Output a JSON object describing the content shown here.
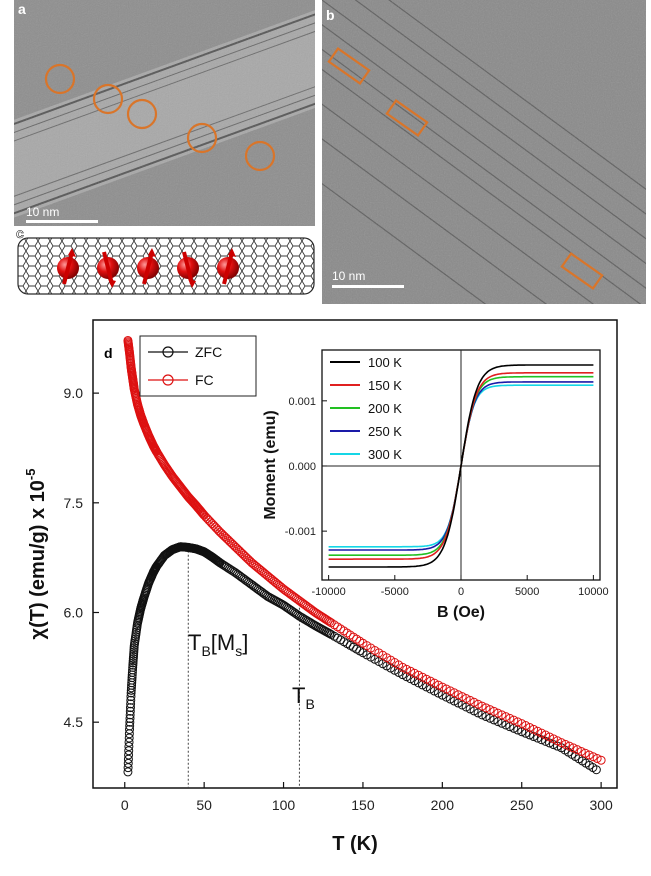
{
  "panels": {
    "a": {
      "label": "a",
      "scale_bar": "10 nm"
    },
    "b": {
      "label": "b",
      "scale_bar": "10 nm"
    },
    "c": {
      "label": "c"
    },
    "d": {
      "label": "d"
    }
  },
  "chart_data": [
    {
      "type": "scatter",
      "panel": "d",
      "xlabel": "T (K)",
      "ylabel": "χ(T) (emu/g) x 10",
      "ylabel_exp": "-5",
      "xlim": [
        -20,
        310
      ],
      "ylim": [
        3.6,
        10.0
      ],
      "x_ticks": [
        0,
        50,
        100,
        150,
        200,
        250,
        300
      ],
      "y_ticks": [
        4.5,
        6.0,
        7.5,
        9.0
      ],
      "x_tick_labels": [
        "0",
        "50",
        "100",
        "150",
        "200",
        "250",
        "300"
      ],
      "y_tick_labels": [
        "4.5",
        "6.0",
        "7.5",
        "9.0"
      ],
      "legend_position": "top-left",
      "series": [
        {
          "name": "ZFC",
          "color": "#111111",
          "marker": "open-circle",
          "x": [
            2,
            3,
            4,
            5,
            6,
            8,
            10,
            12,
            15,
            18,
            20,
            25,
            30,
            35,
            40,
            45,
            50,
            55,
            60,
            70,
            80,
            90,
            100,
            110,
            120,
            130,
            150,
            175,
            200,
            225,
            250,
            275,
            297
          ],
          "y": [
            3.82,
            4.4,
            4.9,
            5.25,
            5.55,
            5.85,
            6.05,
            6.2,
            6.4,
            6.55,
            6.63,
            6.78,
            6.86,
            6.9,
            6.89,
            6.87,
            6.83,
            6.76,
            6.68,
            6.54,
            6.38,
            6.22,
            6.1,
            5.95,
            5.82,
            5.7,
            5.45,
            5.15,
            4.87,
            4.6,
            4.37,
            4.15,
            3.85
          ]
        },
        {
          "name": "FC",
          "color": "#dd1111",
          "marker": "open-circle",
          "x": [
            2,
            3,
            4,
            5,
            6,
            8,
            10,
            12,
            15,
            18,
            20,
            25,
            30,
            35,
            40,
            45,
            50,
            60,
            70,
            80,
            90,
            100,
            110,
            120,
            130,
            150,
            175,
            200,
            225,
            250,
            275,
            300
          ],
          "y": [
            9.72,
            9.55,
            9.35,
            9.2,
            9.05,
            8.85,
            8.7,
            8.58,
            8.42,
            8.28,
            8.2,
            8.02,
            7.86,
            7.72,
            7.58,
            7.46,
            7.33,
            7.1,
            6.89,
            6.68,
            6.5,
            6.32,
            6.16,
            6.0,
            5.86,
            5.58,
            5.25,
            4.98,
            4.72,
            4.48,
            4.22,
            3.98
          ]
        }
      ],
      "annotations": [
        {
          "text": "T",
          "sub": "B",
          "suffix": "[M",
          "suffix_sub": "s",
          "suffix_end": "]",
          "x": 40
        },
        {
          "text": "T",
          "sub": "B",
          "x": 110
        }
      ]
    },
    {
      "type": "line",
      "panel": "d-inset",
      "xlabel": "B (Oe)",
      "ylabel": "Moment (emu)",
      "xlim": [
        -10500,
        10500
      ],
      "ylim": [
        -0.00175,
        0.00178
      ],
      "x_ticks": [
        -10000,
        -5000,
        0,
        5000,
        10000
      ],
      "y_ticks": [
        -0.001,
        0.0,
        0.001
      ],
      "x_tick_labels": [
        "-10000",
        "-5000",
        "0",
        "5000",
        "10000"
      ],
      "y_tick_labels": [
        "-0.001",
        "0.000",
        "0.001"
      ],
      "legend_position": "top-left",
      "series": [
        {
          "name": "100 K",
          "color": "#000000",
          "ms": 0.00155,
          "h0": 1200
        },
        {
          "name": "150 K",
          "color": "#e02020",
          "ms": 0.00143,
          "h0": 1150
        },
        {
          "name": "200 K",
          "color": "#22c022",
          "ms": 0.00137,
          "h0": 1100
        },
        {
          "name": "250 K",
          "color": "#1a1aa8",
          "ms": 0.00129,
          "h0": 1050
        },
        {
          "name": "300 K",
          "color": "#15d6e6",
          "ms": 0.00124,
          "h0": 1000
        }
      ]
    }
  ]
}
